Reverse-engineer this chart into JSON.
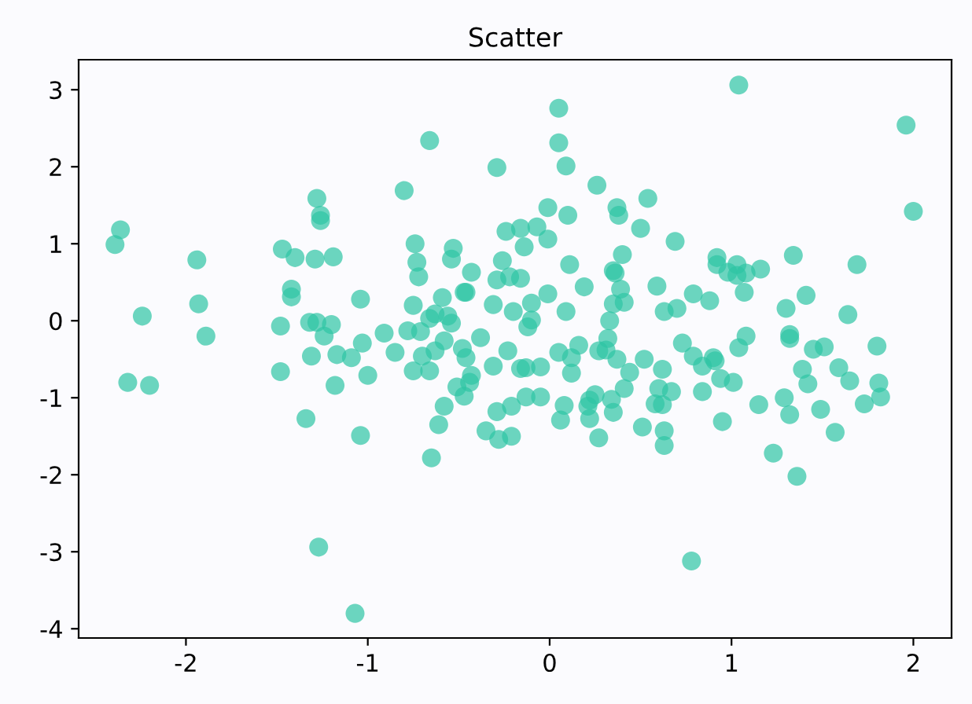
{
  "chart_data": {
    "type": "scatter",
    "title": "Scatter",
    "marker": "circle",
    "grid": false,
    "legend": false,
    "xlim": [
      -2.59,
      2.21
    ],
    "ylim": [
      -4.12,
      3.39
    ],
    "xticks": [
      -2,
      -1,
      0,
      1,
      2
    ],
    "yticks": [
      -4,
      -3,
      -2,
      -1,
      0,
      1,
      2,
      3
    ],
    "series": [
      {
        "color": "#2ec4a4",
        "x": [
          -2.36,
          -2.39,
          -1.94,
          -1.93,
          -2.24,
          -1.89,
          -1.28,
          -1.26,
          -1.26,
          -1.47,
          -1.4,
          -1.29,
          -1.19,
          -1.42,
          -1.42,
          -1.04,
          -1.48,
          -1.32,
          -1.28,
          -1.2,
          -1.24,
          -1.03,
          -1.31,
          -1.17,
          -1.09,
          0.05,
          -0.66,
          0.05,
          0.09,
          -0.29,
          -0.8,
          0.26,
          0.37,
          0.38,
          0.54,
          -0.01,
          0.1,
          0.5,
          -0.24,
          -0.16,
          -0.07,
          -0.01,
          -0.14,
          -0.74,
          -0.53,
          -0.54,
          -0.73,
          -0.72,
          -0.26,
          -0.43,
          -0.29,
          -0.22,
          -0.16,
          0.11,
          0.4,
          0.35,
          0.36,
          0.19,
          0.59,
          -0.01,
          -0.47,
          -0.46,
          -0.59,
          0.39,
          0.35,
          0.41,
          -0.75,
          -0.31,
          -0.1,
          -0.2,
          0.09,
          -0.63,
          -0.66,
          -0.56,
          -0.54,
          0.33,
          0.63,
          -0.1,
          -0.12,
          -0.91,
          -0.78,
          -0.71,
          -0.38,
          -0.58,
          0.32,
          0.16,
          1.04,
          1.96,
          2.0,
          0.69,
          0.92,
          0.92,
          1.03,
          0.98,
          1.03,
          1.08,
          1.16,
          1.07,
          1.34,
          1.69,
          0.79,
          0.88,
          0.7,
          1.3,
          1.41,
          1.64,
          0.73,
          1.08,
          1.04,
          1.32,
          1.32,
          1.45,
          1.51,
          1.8,
          0.79,
          0.9,
          -2.32,
          -2.2,
          -1.48,
          -1.0,
          -1.18,
          -1.34,
          -1.04,
          -1.27,
          -1.07,
          -0.85,
          -0.7,
          -0.63,
          -0.48,
          -0.46,
          -0.23,
          -0.75,
          -0.66,
          -0.31,
          -0.16,
          -0.13,
          -0.05,
          0.05,
          0.12,
          0.12,
          0.27,
          0.31,
          0.37,
          0.44,
          0.52,
          0.62,
          -0.43,
          -0.44,
          -0.51,
          -0.47,
          -0.58,
          -0.61,
          -0.65,
          -0.29,
          -0.21,
          -0.13,
          -0.05,
          -0.35,
          -0.28,
          -0.21,
          0.08,
          0.06,
          0.25,
          0.22,
          0.21,
          0.22,
          0.34,
          0.35,
          0.41,
          0.27,
          0.51,
          0.6,
          0.58,
          0.62,
          0.63,
          0.63,
          0.67,
          0.84,
          0.91,
          0.84,
          0.94,
          1.01,
          0.95,
          1.15,
          1.29,
          1.32,
          1.39,
          1.42,
          1.59,
          1.65,
          1.49,
          1.57,
          1.73,
          1.81,
          1.82,
          1.23,
          1.36,
          0.78
        ],
        "values": [
          1.18,
          0.99,
          0.79,
          0.22,
          0.06,
          -0.2,
          1.59,
          1.37,
          1.3,
          0.93,
          0.82,
          0.8,
          0.83,
          0.41,
          0.31,
          0.28,
          -0.07,
          -0.02,
          -0.02,
          -0.05,
          -0.2,
          -0.29,
          -0.46,
          -0.44,
          -0.48,
          2.76,
          2.34,
          2.31,
          2.01,
          1.99,
          1.69,
          1.76,
          1.47,
          1.37,
          1.59,
          1.47,
          1.37,
          1.2,
          1.16,
          1.2,
          1.22,
          1.06,
          0.96,
          1.0,
          0.94,
          0.8,
          0.76,
          0.57,
          0.78,
          0.63,
          0.53,
          0.57,
          0.55,
          0.73,
          0.86,
          0.65,
          0.62,
          0.44,
          0.45,
          0.35,
          0.37,
          0.37,
          0.3,
          0.41,
          0.22,
          0.24,
          0.2,
          0.21,
          0.23,
          0.12,
          0.12,
          0.09,
          0.03,
          0.06,
          -0.03,
          0.0,
          0.12,
          0.01,
          -0.08,
          -0.16,
          -0.13,
          -0.14,
          -0.22,
          -0.26,
          -0.23,
          -0.32,
          3.06,
          2.54,
          1.42,
          1.03,
          0.82,
          0.73,
          0.73,
          0.63,
          0.59,
          0.62,
          0.67,
          0.37,
          0.85,
          0.73,
          0.35,
          0.26,
          0.16,
          0.16,
          0.33,
          0.08,
          -0.29,
          -0.2,
          -0.35,
          -0.18,
          -0.23,
          -0.37,
          -0.34,
          -0.33,
          -0.46,
          -0.48,
          -0.8,
          -0.84,
          -0.66,
          -0.71,
          -0.84,
          -1.27,
          -1.49,
          -2.94,
          -3.8,
          -0.41,
          -0.46,
          -0.39,
          -0.36,
          -0.48,
          -0.39,
          -0.65,
          -0.65,
          -0.59,
          -0.62,
          -0.61,
          -0.6,
          -0.41,
          -0.48,
          -0.68,
          -0.39,
          -0.38,
          -0.5,
          -0.67,
          -0.5,
          -0.63,
          -0.71,
          -0.8,
          -0.86,
          -0.98,
          -1.11,
          -1.35,
          -1.78,
          -1.18,
          -1.11,
          -0.99,
          -0.99,
          -1.43,
          -1.54,
          -1.5,
          -1.1,
          -1.29,
          -0.96,
          -1.03,
          -1.11,
          -1.27,
          -1.02,
          -1.19,
          -0.88,
          -1.52,
          -1.38,
          -0.88,
          -1.08,
          -1.09,
          -1.43,
          -1.62,
          -0.92,
          -0.59,
          -0.52,
          -0.92,
          -0.75,
          -0.8,
          -1.31,
          -1.09,
          -1.0,
          -1.22,
          -0.63,
          -0.82,
          -0.61,
          -0.78,
          -1.15,
          -1.45,
          -1.08,
          -0.81,
          -0.99,
          -1.72,
          -2.02,
          -3.12
        ]
      }
    ]
  }
}
